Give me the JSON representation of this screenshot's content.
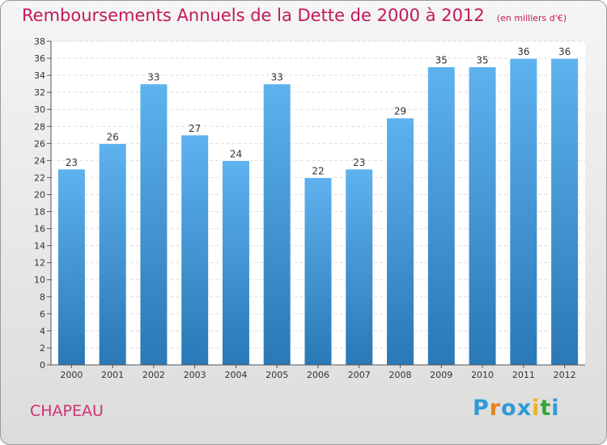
{
  "header": {
    "title": "Remboursements Annuels de la Dette de 2000 à 2012",
    "unit": "(en milliers d'€)"
  },
  "footer": {
    "place": "CHAPEAU",
    "brand": "Proxiti",
    "brand_letters": [
      "P",
      "r",
      "o",
      "x",
      "i",
      "t",
      "i"
    ],
    "brand_colors": [
      "#2e9bd6",
      "#e8841a",
      "#2e9bd6",
      "#2e9bd6",
      "#f0b21a",
      "#3aa33a",
      "#2e9bd6"
    ]
  },
  "colors": {
    "title": "#c2185b",
    "bar_top": "#5eb2ee",
    "bar_bottom": "#2a78b6",
    "grid": "#dddddd"
  },
  "chart_data": {
    "type": "bar",
    "title": "Remboursements Annuels de la Dette de 2000 à 2012",
    "subtitle": "(en milliers d'€)",
    "categories": [
      "2000",
      "2001",
      "2002",
      "2003",
      "2004",
      "2005",
      "2006",
      "2007",
      "2008",
      "2009",
      "2010",
      "2011",
      "2012"
    ],
    "values": [
      23,
      26,
      33,
      27,
      24,
      33,
      22,
      23,
      29,
      35,
      35,
      36,
      36
    ],
    "ylim": [
      0,
      38
    ],
    "yticks": [
      0,
      2,
      4,
      6,
      8,
      10,
      12,
      14,
      16,
      18,
      20,
      22,
      24,
      26,
      28,
      30,
      32,
      34,
      36,
      38
    ],
    "grid": true,
    "xlabel": "",
    "ylabel": ""
  }
}
